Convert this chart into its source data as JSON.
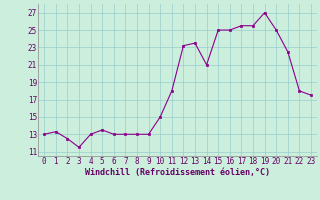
{
  "x": [
    0,
    1,
    2,
    3,
    4,
    5,
    6,
    7,
    8,
    9,
    10,
    11,
    12,
    13,
    14,
    15,
    16,
    17,
    18,
    19,
    20,
    21,
    22,
    23
  ],
  "y": [
    13,
    13.3,
    12.5,
    11.5,
    13,
    13.5,
    13,
    13,
    13,
    13,
    15,
    18,
    23.2,
    23.5,
    21,
    25,
    25,
    25.5,
    25.5,
    27,
    25,
    22.5,
    18,
    17.5
  ],
  "line_color": "#8B008B",
  "marker_color": "#8B008B",
  "bg_color": "#cceedd",
  "grid_color": "#99cccc",
  "xlabel": "Windchill (Refroidissement éolien,°C)",
  "xlabel_fontsize": 6.0,
  "tick_fontsize": 5.5,
  "tick_color": "#660066",
  "ytick_labels": [
    "11",
    "13",
    "15",
    "17",
    "19",
    "21",
    "23",
    "25",
    "27"
  ],
  "ytick_values": [
    11,
    13,
    15,
    17,
    19,
    21,
    23,
    25,
    27
  ],
  "ylim": [
    10.5,
    28.0
  ],
  "xlim": [
    -0.5,
    23.5
  ],
  "xtick_values": [
    0,
    1,
    2,
    3,
    4,
    5,
    6,
    7,
    8,
    9,
    10,
    11,
    12,
    13,
    14,
    15,
    16,
    17,
    18,
    19,
    20,
    21,
    22,
    23
  ]
}
